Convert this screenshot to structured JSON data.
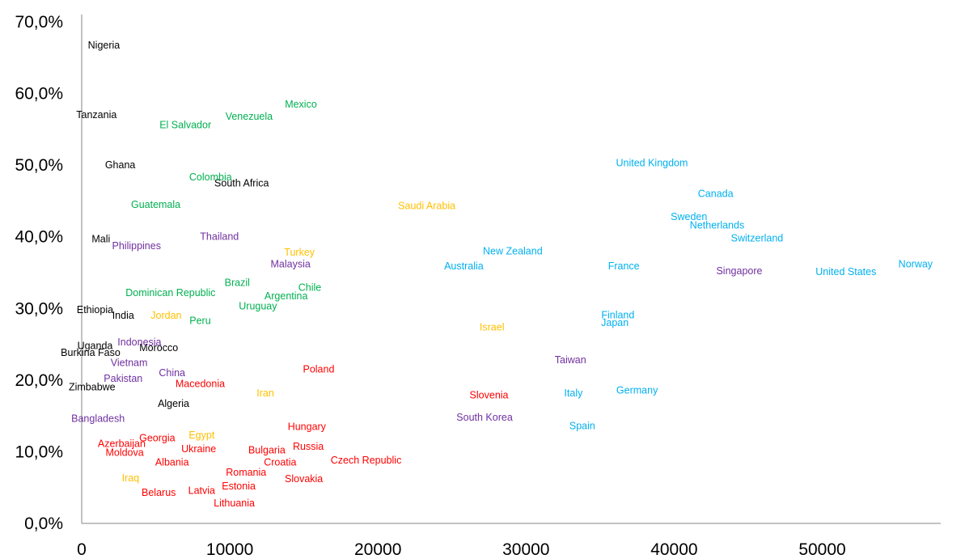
{
  "chart_data": {
    "type": "scatter",
    "title": "",
    "xlabel": "",
    "ylabel": "",
    "xlim": [
      0,
      58000
    ],
    "ylim": [
      0,
      70
    ],
    "x_ticks": [
      0,
      10000,
      20000,
      30000,
      40000,
      50000
    ],
    "x_tick_labels": [
      "0",
      "10000",
      "20000",
      "30000",
      "40000",
      "50000"
    ],
    "y_ticks": [
      0,
      10,
      20,
      30,
      40,
      50,
      60,
      70
    ],
    "y_tick_labels": [
      "0,0%",
      "10,0%",
      "20,0%",
      "30,0%",
      "40,0%",
      "50,0%",
      "60,0%",
      "70,0%"
    ],
    "grid": false,
    "colors": {
      "black": "#000000",
      "green": "#00b050",
      "purple": "#7030a0",
      "blue": "#00b0f0",
      "orange": "#ffc000",
      "red": "#ff0000"
    },
    "points": [
      {
        "label": "Nigeria",
        "x": 1500,
        "y": 66.7,
        "color": "black"
      },
      {
        "label": "Tanzania",
        "x": 1000,
        "y": 57.0,
        "color": "black"
      },
      {
        "label": "Ghana",
        "x": 2600,
        "y": 50.0,
        "color": "black"
      },
      {
        "label": "South Africa",
        "x": 10800,
        "y": 47.5,
        "color": "black"
      },
      {
        "label": "Mali",
        "x": 1300,
        "y": 39.7,
        "color": "black"
      },
      {
        "label": "Ethiopia",
        "x": 900,
        "y": 29.8,
        "color": "black"
      },
      {
        "label": "India",
        "x": 2800,
        "y": 29.0,
        "color": "black"
      },
      {
        "label": "Uganda",
        "x": 900,
        "y": 24.8,
        "color": "black"
      },
      {
        "label": "Morocco",
        "x": 5200,
        "y": 24.5,
        "color": "black"
      },
      {
        "label": "Burkina Faso",
        "x": 600,
        "y": 23.8,
        "color": "black"
      },
      {
        "label": "Zimbabwe",
        "x": 700,
        "y": 19.0,
        "color": "black"
      },
      {
        "label": "Algeria",
        "x": 6200,
        "y": 16.7,
        "color": "black"
      },
      {
        "label": "Mexico",
        "x": 14800,
        "y": 58.5,
        "color": "green"
      },
      {
        "label": "Venezuela",
        "x": 11300,
        "y": 56.8,
        "color": "green"
      },
      {
        "label": "El Salvador",
        "x": 7000,
        "y": 55.6,
        "color": "green"
      },
      {
        "label": "Colombia",
        "x": 8700,
        "y": 48.3,
        "color": "green"
      },
      {
        "label": "Guatemala",
        "x": 5000,
        "y": 44.5,
        "color": "green"
      },
      {
        "label": "Brazil",
        "x": 10500,
        "y": 33.6,
        "color": "green"
      },
      {
        "label": "Chile",
        "x": 15400,
        "y": 32.9,
        "color": "green"
      },
      {
        "label": "Dominican Republic",
        "x": 6000,
        "y": 32.2,
        "color": "green"
      },
      {
        "label": "Argentina",
        "x": 13800,
        "y": 31.7,
        "color": "green"
      },
      {
        "label": "Uruguay",
        "x": 11900,
        "y": 30.3,
        "color": "green"
      },
      {
        "label": "Peru",
        "x": 8000,
        "y": 28.3,
        "color": "green"
      },
      {
        "label": "Thailand",
        "x": 9300,
        "y": 40.0,
        "color": "purple"
      },
      {
        "label": "Philippines",
        "x": 3700,
        "y": 38.7,
        "color": "purple"
      },
      {
        "label": "Malaysia",
        "x": 14100,
        "y": 36.2,
        "color": "purple"
      },
      {
        "label": "Indonesia",
        "x": 3900,
        "y": 25.3,
        "color": "purple"
      },
      {
        "label": "Vietnam",
        "x": 3200,
        "y": 22.4,
        "color": "purple"
      },
      {
        "label": "Pakistan",
        "x": 2800,
        "y": 20.2,
        "color": "purple"
      },
      {
        "label": "China",
        "x": 6100,
        "y": 21.0,
        "color": "purple"
      },
      {
        "label": "Bangladesh",
        "x": 1100,
        "y": 14.6,
        "color": "purple"
      },
      {
        "label": "Singapore",
        "x": 44400,
        "y": 35.2,
        "color": "purple"
      },
      {
        "label": "Taiwan",
        "x": 33000,
        "y": 22.8,
        "color": "purple"
      },
      {
        "label": "South Korea",
        "x": 27200,
        "y": 14.8,
        "color": "purple"
      },
      {
        "label": "United Kingdom",
        "x": 38500,
        "y": 50.3,
        "color": "blue"
      },
      {
        "label": "Canada",
        "x": 42800,
        "y": 46.0,
        "color": "blue"
      },
      {
        "label": "Sweden",
        "x": 41000,
        "y": 42.8,
        "color": "blue"
      },
      {
        "label": "Netherlands",
        "x": 42900,
        "y": 41.6,
        "color": "blue"
      },
      {
        "label": "Switzerland",
        "x": 45600,
        "y": 39.8,
        "color": "blue"
      },
      {
        "label": "New Zealand",
        "x": 29100,
        "y": 38.0,
        "color": "blue"
      },
      {
        "label": "Australia",
        "x": 25800,
        "y": 35.9,
        "color": "blue"
      },
      {
        "label": "France",
        "x": 36600,
        "y": 35.9,
        "color": "blue"
      },
      {
        "label": "United States",
        "x": 51600,
        "y": 35.1,
        "color": "blue"
      },
      {
        "label": "Norway",
        "x": 56300,
        "y": 36.2,
        "color": "blue"
      },
      {
        "label": "Finland",
        "x": 36200,
        "y": 29.1,
        "color": "blue"
      },
      {
        "label": "Japan",
        "x": 36000,
        "y": 28.0,
        "color": "blue"
      },
      {
        "label": "Germany",
        "x": 37500,
        "y": 18.6,
        "color": "blue"
      },
      {
        "label": "Italy",
        "x": 33200,
        "y": 18.2,
        "color": "blue"
      },
      {
        "label": "Spain",
        "x": 33800,
        "y": 13.6,
        "color": "blue"
      },
      {
        "label": "Saudi Arabia",
        "x": 23300,
        "y": 44.3,
        "color": "orange"
      },
      {
        "label": "Turkey",
        "x": 14700,
        "y": 37.8,
        "color": "orange"
      },
      {
        "label": "Jordan",
        "x": 5700,
        "y": 29.0,
        "color": "orange"
      },
      {
        "label": "Israel",
        "x": 27700,
        "y": 27.4,
        "color": "orange"
      },
      {
        "label": "Iran",
        "x": 12400,
        "y": 18.2,
        "color": "orange"
      },
      {
        "label": "Egypt",
        "x": 8100,
        "y": 12.3,
        "color": "orange"
      },
      {
        "label": "Iraq",
        "x": 3300,
        "y": 6.3,
        "color": "orange"
      },
      {
        "label": "Poland",
        "x": 16000,
        "y": 21.5,
        "color": "red"
      },
      {
        "label": "Macedonia",
        "x": 8000,
        "y": 19.5,
        "color": "red"
      },
      {
        "label": "Slovenia",
        "x": 27500,
        "y": 17.9,
        "color": "red"
      },
      {
        "label": "Hungary",
        "x": 15200,
        "y": 13.5,
        "color": "red"
      },
      {
        "label": "Georgia",
        "x": 5100,
        "y": 11.9,
        "color": "red"
      },
      {
        "label": "Azerbaijan",
        "x": 2700,
        "y": 11.1,
        "color": "red"
      },
      {
        "label": "Ukraine",
        "x": 7900,
        "y": 10.4,
        "color": "red"
      },
      {
        "label": "Russia",
        "x": 15300,
        "y": 10.7,
        "color": "red"
      },
      {
        "label": "Bulgaria",
        "x": 12500,
        "y": 10.2,
        "color": "red"
      },
      {
        "label": "Moldova",
        "x": 2900,
        "y": 9.9,
        "color": "red"
      },
      {
        "label": "Czech Republic",
        "x": 19200,
        "y": 8.8,
        "color": "red"
      },
      {
        "label": "Croatia",
        "x": 13400,
        "y": 8.5,
        "color": "red"
      },
      {
        "label": "Albania",
        "x": 6100,
        "y": 8.5,
        "color": "red"
      },
      {
        "label": "Romania",
        "x": 11100,
        "y": 7.1,
        "color": "red"
      },
      {
        "label": "Slovakia",
        "x": 15000,
        "y": 6.2,
        "color": "red"
      },
      {
        "label": "Estonia",
        "x": 10600,
        "y": 5.2,
        "color": "red"
      },
      {
        "label": "Latvia",
        "x": 8100,
        "y": 4.6,
        "color": "red"
      },
      {
        "label": "Belarus",
        "x": 5200,
        "y": 4.3,
        "color": "red"
      },
      {
        "label": "Lithuania",
        "x": 10300,
        "y": 2.8,
        "color": "red"
      }
    ]
  }
}
